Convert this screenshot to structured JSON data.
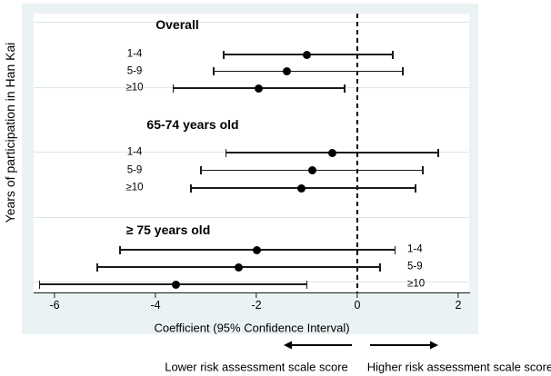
{
  "figure": {
    "y_axis_label": "Years of participation in Han Kai",
    "x_axis_label": "Coefficient (95% Confidence Interval)",
    "x_ticks": [
      -6,
      -4,
      -2,
      0,
      2
    ]
  },
  "chart_data": {
    "type": "forest",
    "title": "",
    "xlabel": "Coefficient (95% Confidence Interval)",
    "ylabel": "Years of participation in Han Kai",
    "xlim": [
      -6.4,
      2.2
    ],
    "zero_reference": 0,
    "grid": true,
    "x_ticks": [
      -6,
      -4,
      -2,
      0,
      2
    ],
    "groups": [
      {
        "title": "Overall",
        "label_side": "left",
        "rows": [
          {
            "label": "1-4",
            "est": -1.0,
            "lo": -2.65,
            "hi": 0.7
          },
          {
            "label": "5-9",
            "est": -1.4,
            "lo": -2.85,
            "hi": 0.9
          },
          {
            "label": "≥10",
            "est": -1.95,
            "lo": -3.65,
            "hi": -0.25
          }
        ]
      },
      {
        "title": "65-74 years old",
        "label_side": "left",
        "rows": [
          {
            "label": "1-4",
            "est": -0.5,
            "lo": -2.6,
            "hi": 1.6
          },
          {
            "label": "5-9",
            "est": -0.9,
            "lo": -3.1,
            "hi": 1.3
          },
          {
            "label": "≥10",
            "est": -1.1,
            "lo": -3.3,
            "hi": 1.15
          }
        ]
      },
      {
        "title": "≥ 75 years old",
        "label_side": "right",
        "rows": [
          {
            "label": "1-4",
            "est": -2.0,
            "lo": -4.7,
            "hi": 0.75
          },
          {
            "label": "5-9",
            "est": -2.35,
            "lo": -5.15,
            "hi": 0.45
          },
          {
            "label": "≥10",
            "est": -3.6,
            "lo": -6.3,
            "hi": -1.0
          }
        ]
      }
    ]
  },
  "footer": {
    "lower_label": "Lower risk assessment scale score",
    "higher_label": "Higher risk assessment scale score"
  },
  "colors": {
    "figure_background": "#eaf2f3",
    "plot_background": "#ffffff",
    "gridline": "#dbe7ea",
    "marker": "#000000",
    "zero_line": "#000000",
    "text": "#000000"
  }
}
